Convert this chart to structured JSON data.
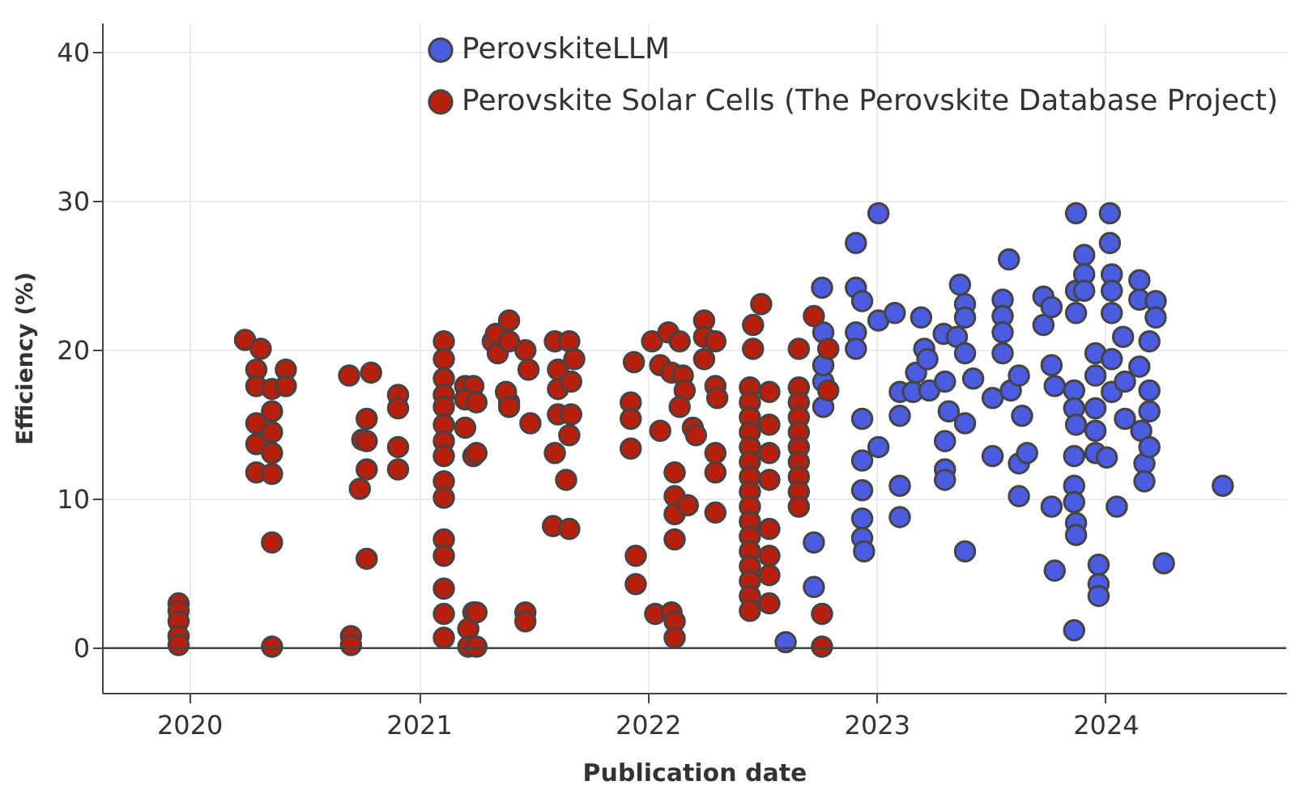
{
  "chart_data": {
    "type": "scatter",
    "xlabel": "Publication date",
    "ylabel": "Efficiency (%)",
    "xlim": [
      "2019-08-15",
      "2024-10-15"
    ],
    "xticks": [
      "2020",
      "2021",
      "2022",
      "2023",
      "2024"
    ],
    "ylim": [
      -3,
      42
    ],
    "yticks": [
      0,
      10,
      20,
      30,
      40
    ],
    "grid": true,
    "legend": "top",
    "marker": "circle",
    "ref_lines": [
      {
        "axis": "y",
        "value": 0,
        "color": "#444444"
      }
    ],
    "series": [
      {
        "name": "PerovskiteLLM",
        "color": "#4c5ce0",
        "x": [
          "2022-08-09",
          "2022-09-23",
          "2022-09-23",
          "2022-10-06",
          "2022-10-08",
          "2022-10-08",
          "2022-10-08",
          "2022-10-08",
          "2022-11-29",
          "2022-11-29",
          "2022-11-29",
          "2022-11-29",
          "2022-12-09",
          "2022-12-09",
          "2022-12-09",
          "2022-12-09",
          "2022-12-09",
          "2022-12-09",
          "2022-12-12",
          "2023-01-04",
          "2023-01-04",
          "2023-01-04",
          "2023-01-30",
          "2023-02-07",
          "2023-02-07",
          "2023-02-07",
          "2023-02-07",
          "2023-02-28",
          "2023-03-05",
          "2023-03-13",
          "2023-03-18",
          "2023-03-23",
          "2023-03-26",
          "2023-04-18",
          "2023-04-20",
          "2023-04-20",
          "2023-04-20",
          "2023-04-20",
          "2023-04-26",
          "2023-05-09",
          "2023-05-14",
          "2023-05-22",
          "2023-05-22",
          "2023-05-22",
          "2023-05-22",
          "2023-05-22",
          "2023-06-04",
          "2023-07-05",
          "2023-07-05",
          "2023-07-21",
          "2023-07-21",
          "2023-07-21",
          "2023-07-21",
          "2023-07-31",
          "2023-08-03",
          "2023-08-16",
          "2023-08-16",
          "2023-08-16",
          "2023-08-21",
          "2023-08-29",
          "2023-09-24",
          "2023-09-24",
          "2023-10-07",
          "2023-10-07",
          "2023-10-07",
          "2023-10-12",
          "2023-10-12",
          "2023-11-12",
          "2023-11-12",
          "2023-11-12",
          "2023-11-12",
          "2023-11-12",
          "2023-11-12",
          "2023-11-15",
          "2023-11-15",
          "2023-11-15",
          "2023-11-15",
          "2023-11-15",
          "2023-11-15",
          "2023-11-28",
          "2023-11-28",
          "2023-11-28",
          "2023-12-16",
          "2023-12-16",
          "2023-12-16",
          "2023-12-16",
          "2023-12-16",
          "2023-12-21",
          "2023-12-21",
          "2023-12-21",
          "2024-01-03",
          "2024-01-08",
          "2024-01-08",
          "2024-01-11",
          "2024-01-11",
          "2024-01-11",
          "2024-01-11",
          "2024-01-11",
          "2024-01-19",
          "2024-01-29",
          "2024-02-01",
          "2024-02-01",
          "2024-02-24",
          "2024-02-24",
          "2024-02-24",
          "2024-02-27",
          "2024-03-03",
          "2024-03-03",
          "2024-03-11",
          "2024-03-11",
          "2024-03-11",
          "2024-03-11",
          "2024-03-21",
          "2024-03-21",
          "2024-04-03",
          "2024-07-06"
        ],
        "values": [
          0.4,
          7.1,
          4.1,
          24.2,
          21.2,
          17.9,
          16.2,
          19,
          27.2,
          24.2,
          21.2,
          20.1,
          23.3,
          15.4,
          12.6,
          10.6,
          8.7,
          7.4,
          6.5,
          29.2,
          22,
          13.5,
          22.5,
          17.2,
          15.6,
          10.9,
          8.8,
          17.2,
          18.5,
          22.2,
          20.1,
          19.4,
          17.3,
          21.1,
          17.9,
          13.9,
          12,
          11.3,
          15.9,
          20.9,
          24.4,
          23.1,
          22.2,
          19.8,
          15.1,
          6.5,
          18.1,
          16.8,
          12.9,
          23.4,
          22.3,
          21.2,
          19.8,
          26.1,
          17.3,
          18.3,
          12.4,
          10.2,
          15.6,
          13.1,
          23.6,
          21.7,
          22.9,
          19,
          9.5,
          17.6,
          5.2,
          17.3,
          16.1,
          12.9,
          10.9,
          9.8,
          1.2,
          24,
          22.5,
          15,
          8.4,
          7.6,
          29.2,
          26.4,
          25.1,
          24,
          19.8,
          18.3,
          16.1,
          14.6,
          13.1,
          5.6,
          4.3,
          3.5,
          12.8,
          29.2,
          27.2,
          25.1,
          24,
          22.5,
          19.4,
          17.2,
          9.5,
          20.9,
          17.9,
          15.4,
          24.7,
          23.4,
          18.9,
          14.6,
          12.4,
          11.2,
          20.6,
          17.3,
          15.9,
          13.5,
          23.3,
          22.2,
          5.7,
          10.9
        ]
      },
      {
        "name": "Perovskite Solar Cells (The Perovskite Database Project)",
        "color": "#b8200e",
        "x": [
          "2019-12-15",
          "2019-12-15",
          "2019-12-15",
          "2019-12-15",
          "2019-12-15",
          "2020-03-30",
          "2020-04-24",
          "2020-04-17",
          "2020-04-17",
          "2020-04-17",
          "2020-04-17",
          "2020-04-17",
          "2020-05-12",
          "2020-05-12",
          "2020-05-12",
          "2020-05-12",
          "2020-05-12",
          "2020-05-12",
          "2020-05-12",
          "2020-06-03",
          "2020-06-03",
          "2020-09-12",
          "2020-10-17",
          "2020-10-10",
          "2020-10-03",
          "2020-10-10",
          "2020-10-10",
          "2020-09-29",
          "2020-10-10",
          "2020-09-15",
          "2020-09-15",
          "2020-11-29",
          "2020-11-29",
          "2020-11-29",
          "2020-11-29",
          "2021-02-10",
          "2021-02-10",
          "2021-02-10",
          "2021-02-10",
          "2021-02-10",
          "2021-02-10",
          "2021-02-10",
          "2021-02-10",
          "2021-02-10",
          "2021-02-10",
          "2021-02-10",
          "2021-02-10",
          "2021-02-10",
          "2021-02-10",
          "2021-02-10",
          "2021-03-16",
          "2021-03-29",
          "2021-03-16",
          "2021-03-16",
          "2021-03-29",
          "2021-03-29",
          "2021-03-21",
          "2021-03-21",
          "2021-04-29",
          "2021-05-07",
          "2021-05-25",
          "2021-05-25",
          "2021-05-04",
          "2021-05-25",
          "2021-06-20",
          "2021-06-25",
          "2021-05-20",
          "2021-05-25",
          "2021-06-28",
          "2021-04-03",
          "2021-04-03",
          "2021-04-03",
          "2021-04-03",
          "2021-06-20",
          "2021-06-20",
          "2021-08-06",
          "2021-08-29",
          "2021-08-11",
          "2021-09-06",
          "2021-08-11",
          "2021-09-01",
          "2021-08-11",
          "2021-09-01",
          "2021-08-29",
          "2021-08-06",
          "2021-08-24",
          "2021-08-03",
          "2021-08-29",
          "2021-12-10",
          "2021-12-05",
          "2021-12-05",
          "2021-12-05",
          "2022-01-21",
          "2021-12-13",
          "2021-12-13",
          "2022-01-08",
          "2022-02-03",
          "2022-02-21",
          "2022-01-21",
          "2022-02-08",
          "2022-02-26",
          "2022-03-01",
          "2022-02-21",
          "2022-04-01",
          "2022-04-01",
          "2022-04-19",
          "2022-04-01",
          "2022-04-19",
          "2022-04-22",
          "2022-03-14",
          "2022-03-19",
          "2022-04-19",
          "2022-04-19",
          "2022-02-13",
          "2022-02-13",
          "2022-02-13",
          "2022-02-13",
          "2022-03-06",
          "2022-04-19",
          "2022-01-13",
          "2022-02-08",
          "2022-02-13",
          "2022-02-13",
          "2022-06-13",
          "2022-06-13",
          "2022-06-13",
          "2022-06-13",
          "2022-06-13",
          "2022-06-13",
          "2022-06-13",
          "2022-06-13",
          "2022-06-13",
          "2022-06-13",
          "2022-06-13",
          "2022-06-13",
          "2022-06-13",
          "2022-06-13",
          "2022-06-13",
          "2022-06-13",
          "2022-07-01",
          "2022-06-18",
          "2022-06-18",
          "2022-07-14",
          "2022-07-14",
          "2022-07-14",
          "2022-07-14",
          "2022-07-14",
          "2022-07-14",
          "2022-07-14",
          "2022-07-14",
          "2022-08-30",
          "2022-08-30",
          "2022-08-30",
          "2022-08-30",
          "2022-08-30",
          "2022-08-30",
          "2022-08-30",
          "2022-08-30",
          "2022-08-30",
          "2022-08-30",
          "2022-10-06",
          "2022-10-06",
          "2022-09-23",
          "2022-10-16",
          "2022-10-16"
        ],
        "values": [
          3,
          2.5,
          1.8,
          0.8,
          0.2,
          20.7,
          20.1,
          18.7,
          17.6,
          15.1,
          13.7,
          11.8,
          17.4,
          15.9,
          14.5,
          13.1,
          11.7,
          7.1,
          0.1,
          18.7,
          17.6,
          18.3,
          18.5,
          15.4,
          14,
          13.9,
          12,
          10.7,
          6,
          0.8,
          0.2,
          17,
          16.1,
          13.5,
          12,
          20.6,
          19.4,
          18.1,
          17,
          16.2,
          15,
          13.9,
          12.9,
          11.2,
          10.1,
          7.3,
          6.2,
          4,
          2.3,
          0.7,
          17.6,
          17.6,
          16.7,
          14.8,
          12.9,
          2.4,
          1.3,
          0.1,
          20.6,
          19.8,
          16.5,
          22,
          21.1,
          20.6,
          20,
          18.7,
          17.2,
          16.2,
          15.1,
          16.5,
          13.1,
          2.4,
          0.1,
          2.4,
          1.8,
          20.6,
          20.6,
          18.7,
          19.4,
          17.4,
          17.9,
          15.7,
          15.7,
          14.3,
          13.1,
          11.3,
          8.2,
          8,
          19.2,
          16.5,
          15.4,
          13.4,
          14.6,
          6.2,
          4.3,
          20.6,
          21.2,
          20.6,
          19,
          18.5,
          18.3,
          17.3,
          16.2,
          22,
          20.9,
          20.6,
          19.4,
          17.6,
          16.8,
          14.8,
          14.3,
          13.1,
          11.8,
          11.8,
          10.2,
          9,
          7.3,
          9.6,
          9.1,
          2.3,
          2.4,
          1.8,
          0.7,
          17.5,
          16.5,
          15.5,
          14.5,
          13.5,
          12.5,
          11.5,
          10.5,
          9.5,
          8.5,
          7.5,
          6.5,
          5.5,
          4.5,
          3.5,
          2.5,
          23.1,
          21.7,
          20.1,
          17.2,
          15,
          13.1,
          11.3,
          8,
          6.2,
          4.9,
          3,
          20.1,
          17.5,
          16.5,
          15.5,
          14.5,
          13.5,
          12.5,
          11.5,
          10.5,
          9.5,
          2.3,
          0.1,
          22.3,
          20.1,
          17.3
        ]
      }
    ]
  }
}
